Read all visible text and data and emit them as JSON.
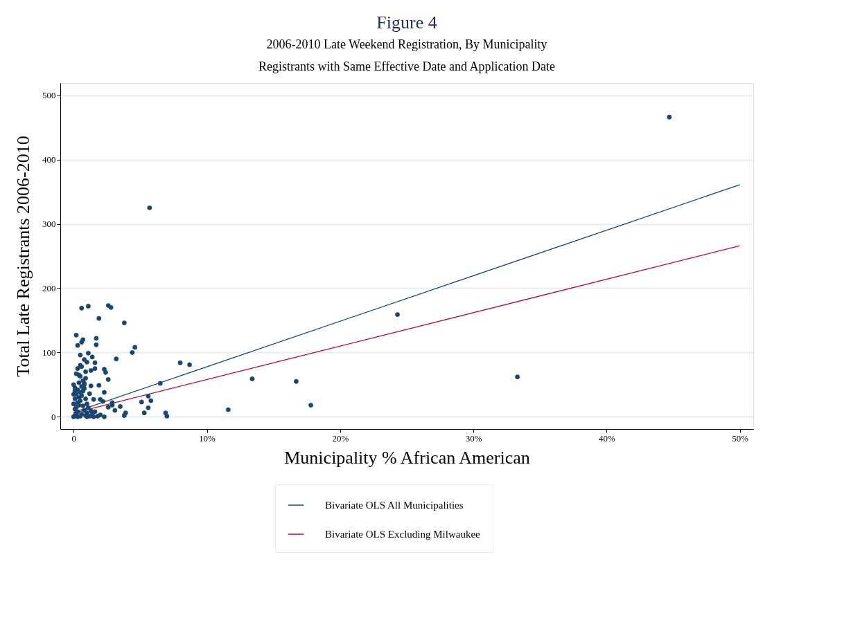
{
  "chart_data": {
    "type": "scatter",
    "title": "Figure 4",
    "subtitle": [
      "2006-2010 Late Weekend Registration, By Municipality",
      "Registrants with Same Effective Date and Application Date"
    ],
    "xlabel": "Municipality % African American",
    "ylabel": "Total Late Registrants 2006-2010",
    "xlim": [
      -1,
      51
    ],
    "ylim": [
      -19,
      519
    ],
    "xticks": [
      0,
      {
        "value": 10,
        "label": "10%"
      },
      {
        "value": 20,
        "label": "20%"
      },
      {
        "value": 30,
        "label": "30%"
      },
      {
        "value": 40,
        "label": "40%"
      },
      {
        "value": 50,
        "label": "50%"
      }
    ],
    "yticks": [
      0,
      100,
      200,
      300,
      400,
      500
    ],
    "grid": "y",
    "legend": "bottom",
    "series": [
      {
        "type": "scatter",
        "marker": "circle",
        "color": "#1a476f",
        "x": [
          44.7,
          5.7,
          24.3,
          33.3,
          17.8,
          16.7,
          13.4,
          11.6,
          0.6,
          1.1,
          2.6,
          2.8,
          1.9,
          3.8,
          0.2,
          0.7,
          0.6,
          1.7,
          1.7,
          0.3,
          4.6,
          4.4,
          1.1,
          0.5,
          1.4,
          3.2,
          0.8,
          1.6,
          8.0,
          8.7,
          0.5,
          0.3,
          2.3,
          1.3,
          1.6,
          2.4,
          0.2,
          2.6,
          0.8,
          1.9,
          1.3,
          6.5,
          2.3,
          1.5,
          2.0,
          2.2,
          2.9,
          2.9,
          3.5,
          2.6,
          3.1,
          5.6,
          5.8,
          5.1,
          5.6,
          5.3,
          3.9,
          3.8,
          6.9,
          7.0,
          0.0,
          0.1,
          0.2,
          0.3,
          0.1,
          0.2,
          0.4,
          0.0,
          0.3,
          0.5,
          0.1,
          0.4,
          0.6,
          0.2,
          0.5,
          0.7,
          0.3,
          0.1,
          0.6,
          0.8,
          0.4,
          0.7,
          0.9,
          0.5,
          0.6,
          0.9,
          1.2,
          1.5,
          1.8,
          2.0,
          1.0,
          0.8,
          1.1,
          1.3,
          0.7,
          1.0,
          0.9,
          1.2,
          0.8,
          1.0,
          0.5,
          0.3,
          1.4,
          1.6,
          2.3,
          0.0,
          0.0,
          0.1,
          0.9,
          0.6,
          0.4,
          1.0
        ],
        "values": [
          466,
          325,
          159,
          62,
          18,
          55,
          59,
          11,
          169,
          172,
          173,
          170,
          153,
          146,
          127,
          120,
          116,
          122,
          112,
          111,
          108,
          100,
          99,
          96,
          93,
          90,
          89,
          84,
          84,
          81,
          80,
          75,
          74,
          72,
          75,
          69,
          67,
          58,
          52,
          49,
          48,
          52,
          38,
          27,
          27,
          24,
          22,
          18,
          16,
          15,
          10,
          32,
          25,
          23,
          14,
          6,
          6,
          2,
          6,
          1,
          0,
          2,
          5,
          8,
          12,
          15,
          18,
          20,
          22,
          25,
          28,
          30,
          33,
          35,
          38,
          40,
          42,
          45,
          47,
          50,
          53,
          56,
          60,
          63,
          4,
          2,
          1,
          0,
          1,
          3,
          6,
          10,
          14,
          9,
          17,
          20,
          28,
          36,
          44,
          0,
          1,
          0,
          4,
          8,
          0,
          35,
          50,
          40,
          70,
          78,
          65,
          85
        ]
      },
      {
        "type": "line",
        "name": "Bivariate OLS All Municipalities",
        "color": "#1a476f",
        "x": [
          0,
          50
        ],
        "values": [
          7,
          361
        ]
      },
      {
        "type": "line",
        "name": "Bivariate OLS Excluding Milwaukee",
        "color": "#c10534",
        "x": [
          0,
          50
        ],
        "values": [
          6,
          266
        ]
      }
    ]
  }
}
